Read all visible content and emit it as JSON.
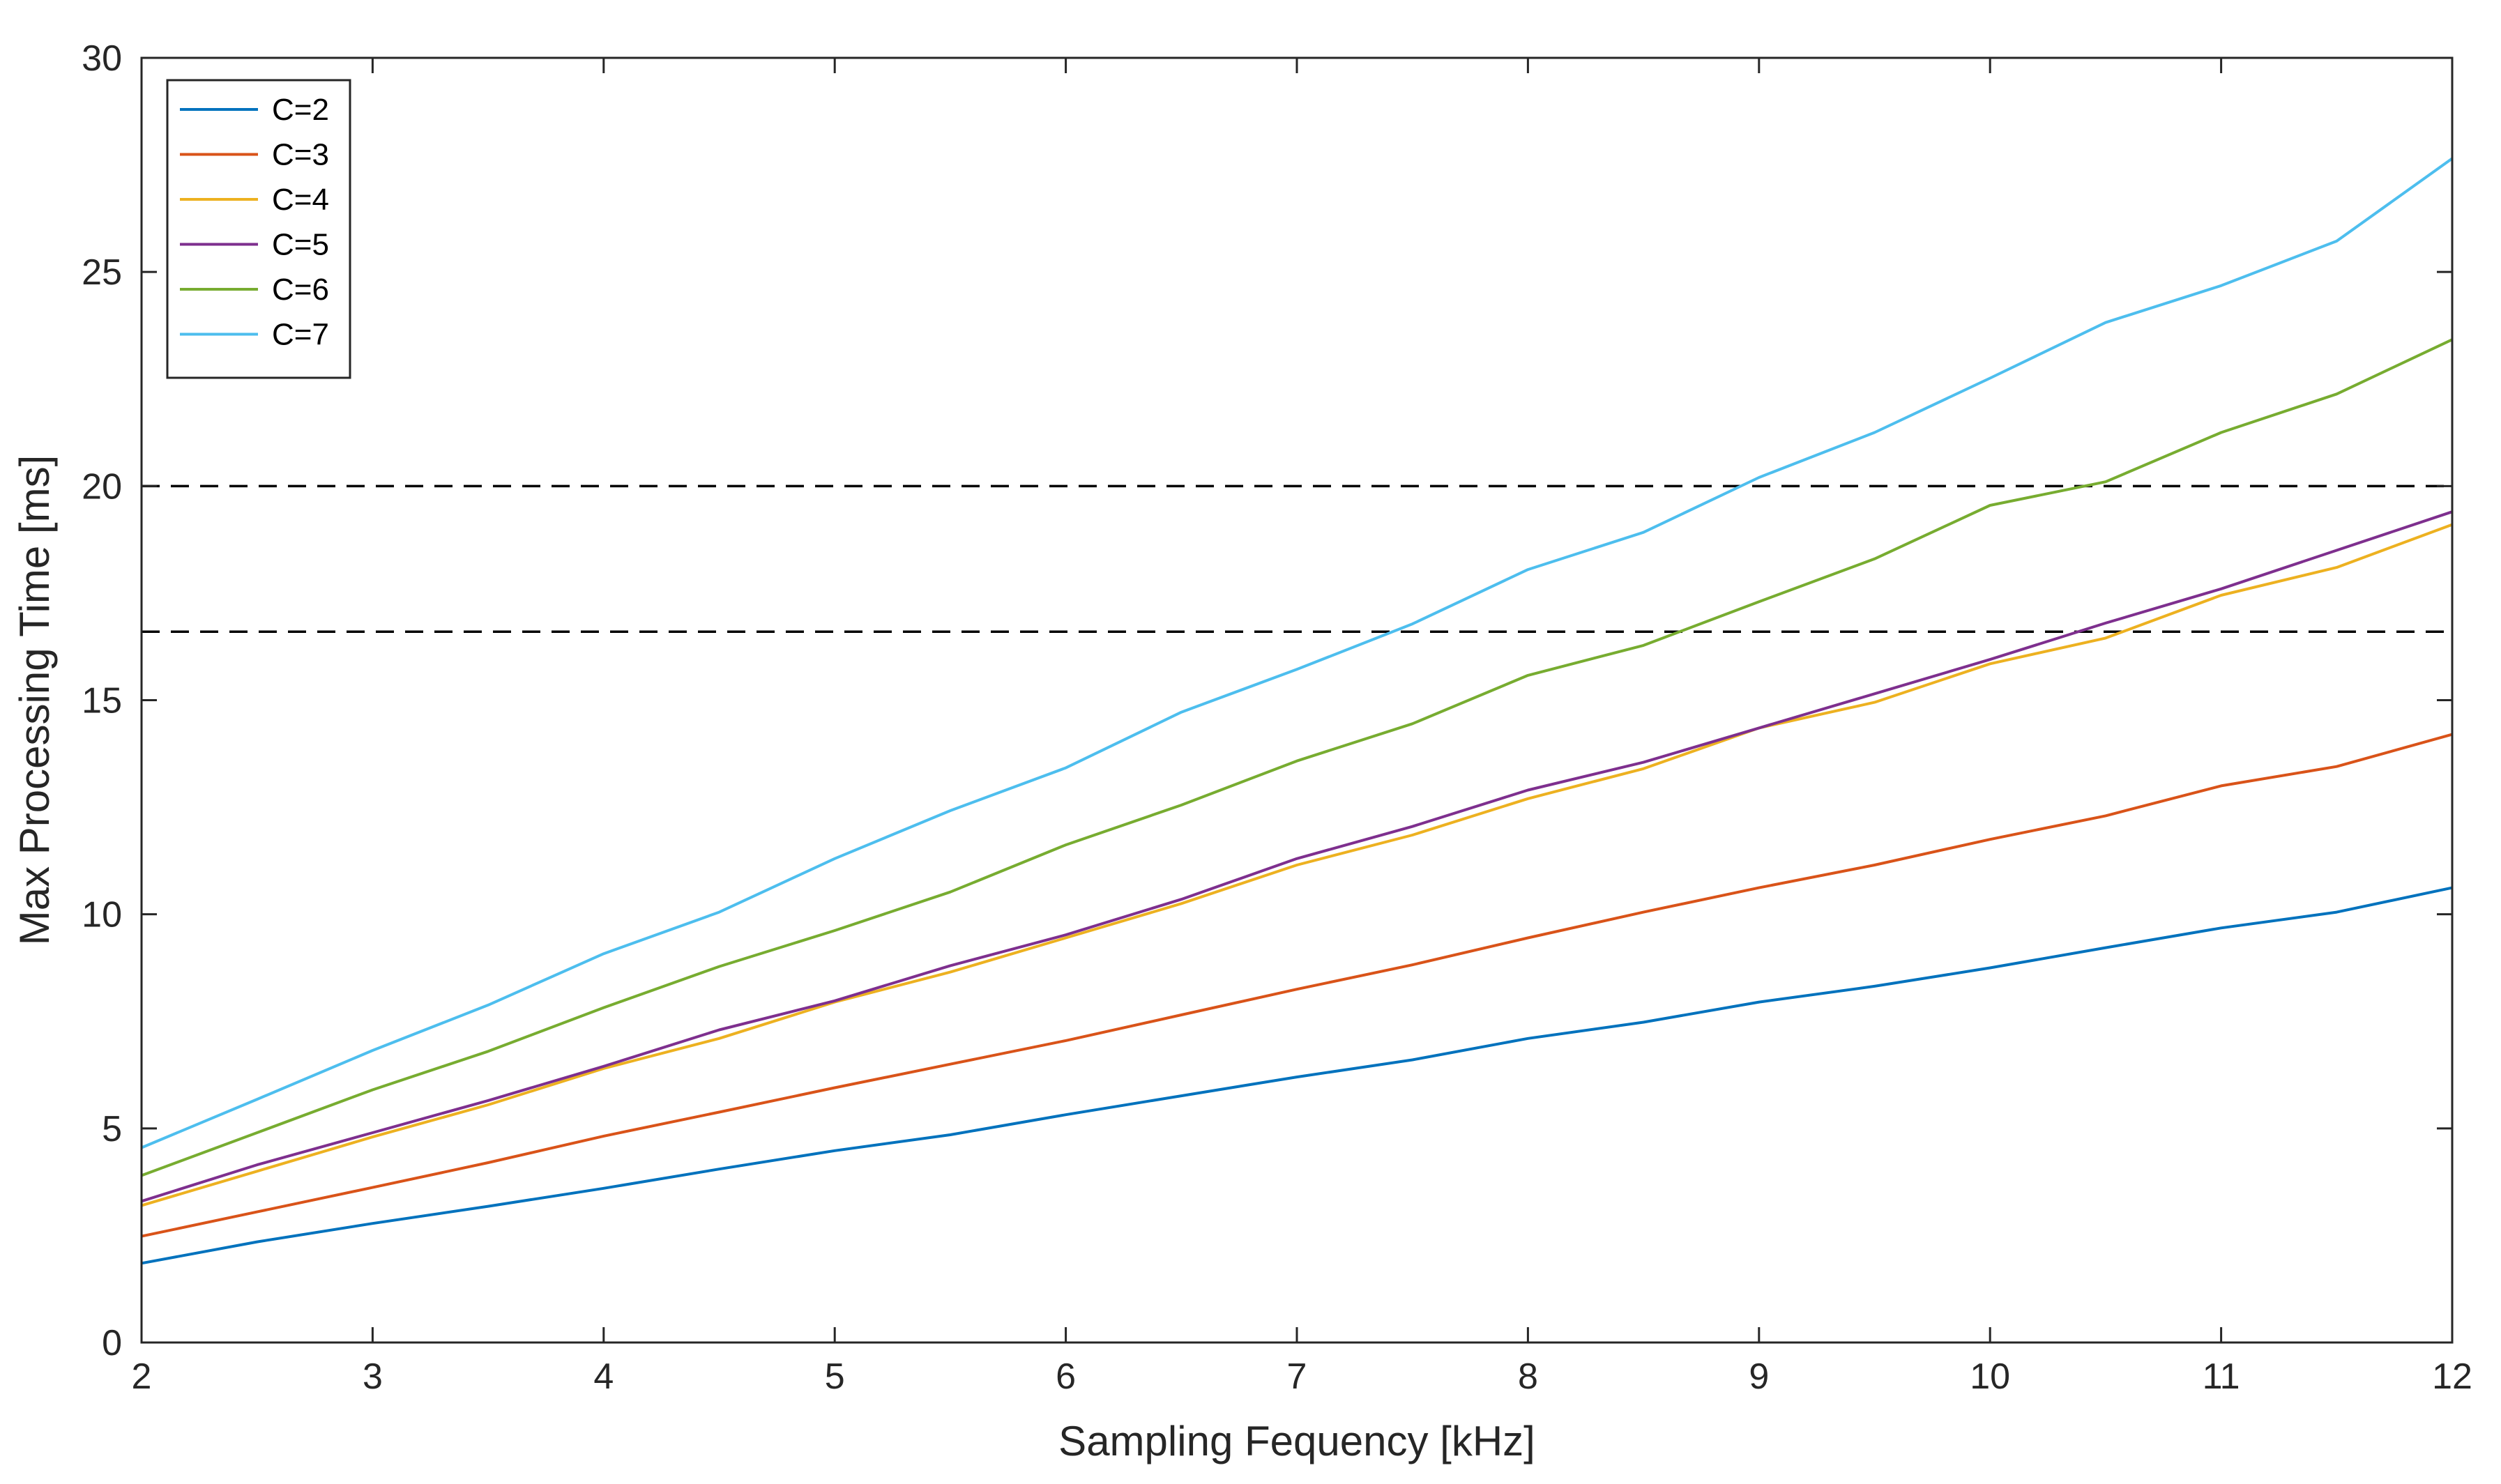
{
  "chart_data": {
    "type": "line",
    "title": "",
    "xlabel": "Sampling Fequency [kHz]",
    "ylabel": "Max Processing Time [ms]",
    "xlim": [
      2,
      12
    ],
    "ylim": [
      0,
      30
    ],
    "xticks": [
      2,
      3,
      4,
      5,
      6,
      7,
      8,
      9,
      10,
      11,
      12
    ],
    "yticks": [
      0,
      5,
      10,
      15,
      20,
      25,
      30
    ],
    "grid": false,
    "legend_position": "top-left",
    "x": [
      2,
      2.5,
      3,
      3.5,
      4,
      4.5,
      5,
      5.5,
      6,
      6.5,
      7,
      7.5,
      8,
      8.5,
      9,
      9.5,
      10,
      10.5,
      11,
      11.5,
      12
    ],
    "series": [
      {
        "name": "C=2",
        "color": "#0072BD",
        "values": [
          1.85,
          2.35,
          2.78,
          3.18,
          3.6,
          4.05,
          4.48,
          4.85,
          5.32,
          5.76,
          6.2,
          6.6,
          7.1,
          7.48,
          7.95,
          8.32,
          8.75,
          9.22,
          9.68,
          10.05,
          10.62
        ]
      },
      {
        "name": "C=3",
        "color": "#D95319",
        "values": [
          2.48,
          3.05,
          3.62,
          4.2,
          4.82,
          5.38,
          5.95,
          6.5,
          7.05,
          7.65,
          8.25,
          8.82,
          9.45,
          10.05,
          10.62,
          11.15,
          11.75,
          12.3,
          13.0,
          13.45,
          14.2
        ]
      },
      {
        "name": "C=4",
        "color": "#EDB120",
        "values": [
          3.2,
          4.0,
          4.8,
          5.55,
          6.4,
          7.1,
          7.95,
          8.65,
          9.45,
          10.25,
          11.15,
          11.85,
          12.7,
          13.4,
          14.35,
          14.95,
          15.85,
          16.45,
          17.45,
          18.1,
          19.1
        ]
      },
      {
        "name": "C=5",
        "color": "#7E2F8E",
        "values": [
          3.3,
          4.15,
          4.9,
          5.65,
          6.45,
          7.3,
          7.98,
          8.8,
          9.52,
          10.35,
          11.3,
          12.05,
          12.9,
          13.55,
          14.35,
          15.15,
          15.95,
          16.8,
          17.6,
          18.5,
          19.4
        ]
      },
      {
        "name": "C=6",
        "color": "#77AC30",
        "values": [
          3.9,
          4.9,
          5.9,
          6.8,
          7.82,
          8.78,
          9.62,
          10.52,
          11.62,
          12.55,
          13.58,
          14.45,
          15.58,
          16.28,
          17.3,
          18.3,
          19.55,
          20.1,
          21.25,
          22.15,
          23.42
        ]
      },
      {
        "name": "C=7",
        "color": "#4DBEEE",
        "values": [
          4.55,
          5.68,
          6.82,
          7.88,
          9.08,
          10.05,
          11.3,
          12.42,
          13.42,
          14.72,
          15.72,
          16.78,
          18.05,
          18.92,
          20.2,
          21.25,
          22.52,
          23.82,
          24.68,
          25.72,
          27.65
        ]
      }
    ],
    "reference_lines": [
      {
        "axis": "y",
        "value": 20,
        "style": "dashed",
        "color": "#000000"
      },
      {
        "axis": "y",
        "value": 16.6,
        "style": "dashed",
        "color": "#000000"
      }
    ]
  }
}
